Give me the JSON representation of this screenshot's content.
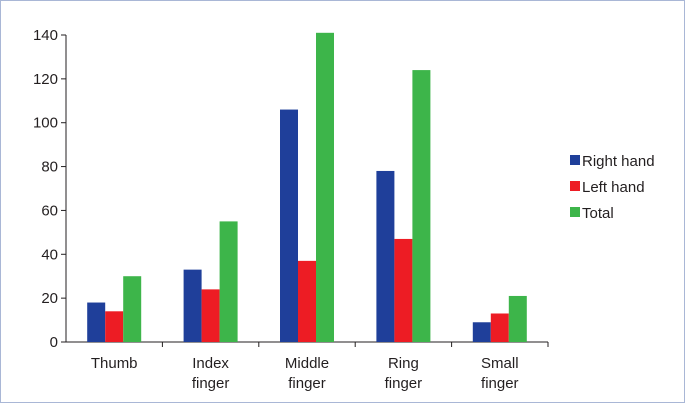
{
  "chart_data": {
    "type": "bar",
    "categories": [
      [
        "Thumb"
      ],
      [
        "Index",
        "finger"
      ],
      [
        "Middle",
        "finger"
      ],
      [
        "Ring",
        "finger"
      ],
      [
        "Small",
        "finger"
      ]
    ],
    "series": [
      {
        "name": "Right hand",
        "color": "#1f3f9a",
        "values": [
          18,
          33,
          106,
          78,
          9
        ]
      },
      {
        "name": "Left hand",
        "color": "#ed1c24",
        "values": [
          14,
          24,
          37,
          47,
          13
        ]
      },
      {
        "name": "Total",
        "color": "#3db54a",
        "values": [
          30,
          55,
          141,
          124,
          21
        ]
      }
    ],
    "ylim": [
      0,
      140
    ],
    "yticks": [
      0,
      20,
      40,
      60,
      80,
      100,
      120,
      140
    ],
    "grid": false,
    "legend_position": "right",
    "title": "",
    "xlabel": "",
    "ylabel": ""
  }
}
